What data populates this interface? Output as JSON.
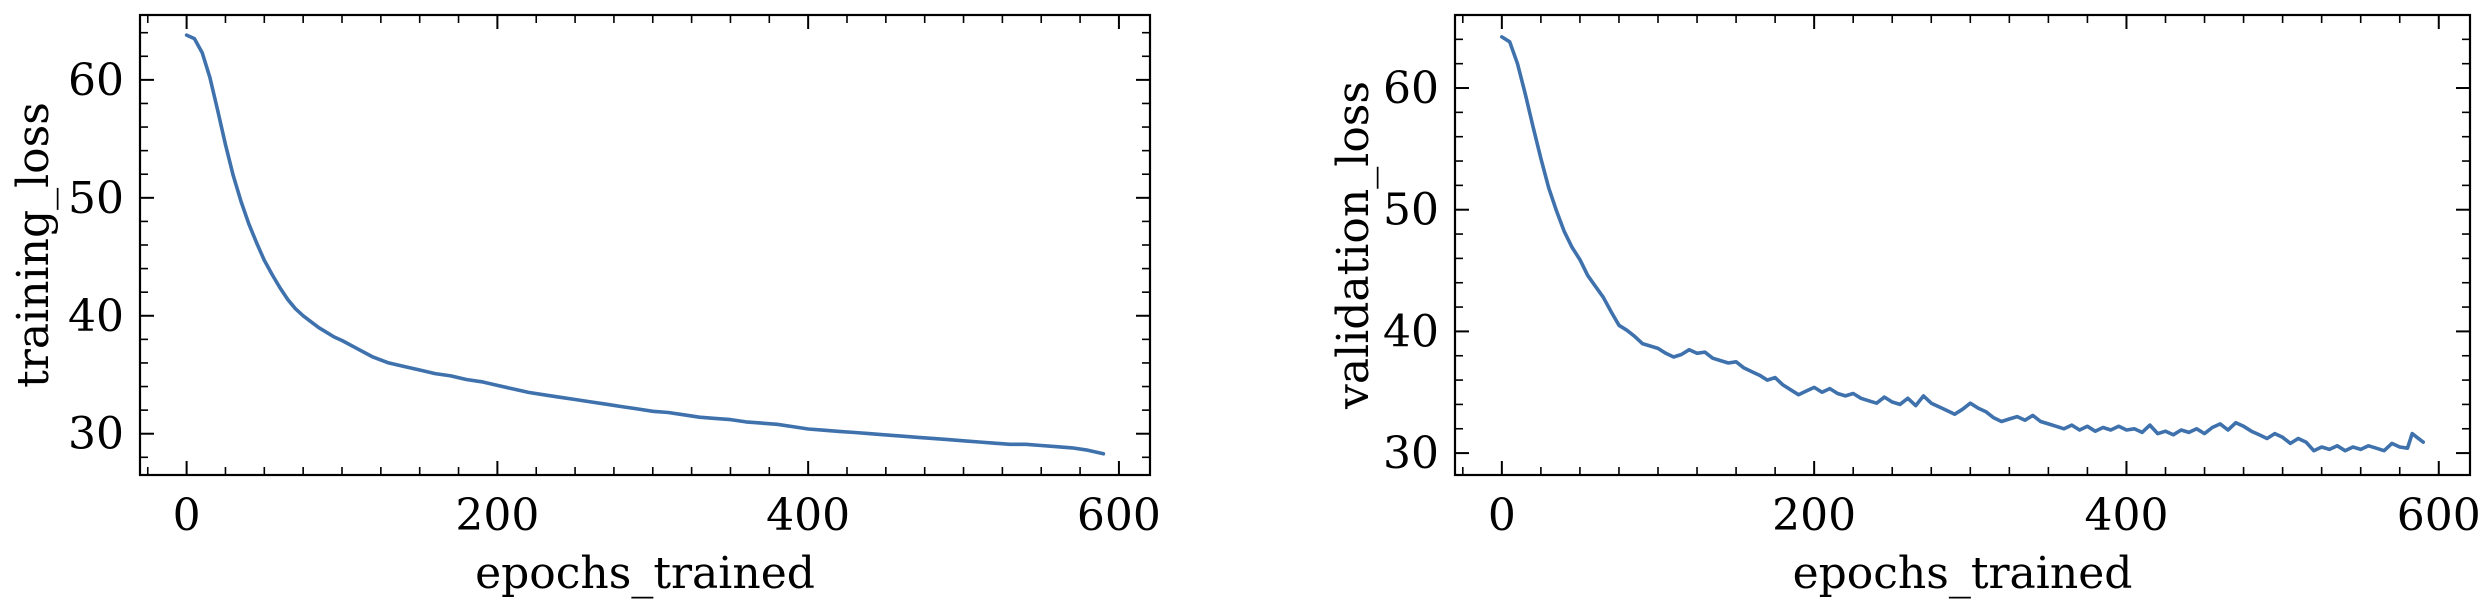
{
  "chart_data": [
    {
      "type": "line",
      "title": "",
      "xlabel": "epochs_trained",
      "ylabel": "training_loss",
      "xlim": [
        -30,
        620
      ],
      "ylim": [
        26.5,
        65.5
      ],
      "xticks": [
        0,
        200,
        400,
        600
      ],
      "yticks": [
        30,
        40,
        50,
        60
      ],
      "grid": false,
      "series": [
        {
          "color": "#3f72ad",
          "x": [
            0,
            5,
            10,
            15,
            20,
            25,
            30,
            35,
            40,
            45,
            50,
            55,
            60,
            65,
            70,
            75,
            80,
            85,
            90,
            95,
            100,
            110,
            120,
            130,
            140,
            150,
            160,
            170,
            180,
            190,
            200,
            210,
            220,
            230,
            240,
            250,
            260,
            270,
            280,
            290,
            300,
            310,
            320,
            330,
            340,
            350,
            360,
            370,
            380,
            390,
            400,
            410,
            420,
            430,
            440,
            450,
            460,
            470,
            480,
            490,
            500,
            510,
            520,
            530,
            540,
            550,
            560,
            570,
            580,
            590
          ],
          "y": [
            63.8,
            63.5,
            62.3,
            60.2,
            57.4,
            54.5,
            51.9,
            49.7,
            47.8,
            46.2,
            44.7,
            43.5,
            42.4,
            41.4,
            40.6,
            40.0,
            39.5,
            39.0,
            38.6,
            38.2,
            37.9,
            37.2,
            36.5,
            36.0,
            35.7,
            35.4,
            35.1,
            34.9,
            34.6,
            34.4,
            34.1,
            33.8,
            33.5,
            33.3,
            33.1,
            32.9,
            32.7,
            32.5,
            32.3,
            32.1,
            31.9,
            31.8,
            31.6,
            31.4,
            31.3,
            31.2,
            31.0,
            30.9,
            30.8,
            30.6,
            30.4,
            30.3,
            30.2,
            30.1,
            30.0,
            29.9,
            29.8,
            29.7,
            29.6,
            29.5,
            29.4,
            29.3,
            29.2,
            29.1,
            29.1,
            29.0,
            28.9,
            28.8,
            28.6,
            28.3
          ]
        }
      ]
    },
    {
      "type": "line",
      "title": "",
      "xlabel": "epochs_trained",
      "ylabel": "validation_loss",
      "xlim": [
        -30,
        620
      ],
      "ylim": [
        28.2,
        66
      ],
      "xticks": [
        0,
        200,
        400,
        600
      ],
      "yticks": [
        30,
        40,
        50,
        60
      ],
      "grid": false,
      "series": [
        {
          "color": "#3f72ad",
          "x": [
            0,
            5,
            10,
            15,
            20,
            25,
            30,
            35,
            40,
            45,
            50,
            55,
            60,
            65,
            70,
            75,
            80,
            85,
            90,
            95,
            100,
            105,
            110,
            115,
            120,
            125,
            130,
            135,
            140,
            145,
            150,
            155,
            160,
            165,
            170,
            175,
            180,
            185,
            190,
            195,
            200,
            205,
            210,
            215,
            220,
            225,
            230,
            235,
            240,
            245,
            250,
            255,
            260,
            265,
            270,
            275,
            280,
            285,
            290,
            295,
            300,
            305,
            310,
            315,
            320,
            325,
            330,
            335,
            340,
            345,
            350,
            355,
            360,
            365,
            370,
            375,
            380,
            385,
            390,
            395,
            400,
            405,
            410,
            415,
            420,
            425,
            430,
            435,
            440,
            445,
            450,
            455,
            460,
            465,
            470,
            475,
            480,
            485,
            490,
            495,
            500,
            505,
            510,
            515,
            520,
            525,
            530,
            535,
            540,
            545,
            550,
            555,
            560,
            565,
            570,
            575,
            580,
            583,
            586,
            590
          ],
          "y": [
            64.2,
            63.8,
            62.0,
            59.5,
            56.8,
            54.2,
            51.8,
            49.9,
            48.2,
            46.9,
            45.9,
            44.6,
            43.7,
            42.8,
            41.6,
            40.5,
            40.1,
            39.6,
            39.0,
            38.8,
            38.6,
            38.2,
            37.9,
            38.1,
            38.5,
            38.2,
            38.3,
            37.8,
            37.6,
            37.4,
            37.5,
            37.0,
            36.7,
            36.4,
            36.0,
            36.2,
            35.6,
            35.2,
            34.8,
            35.1,
            35.4,
            35.0,
            35.3,
            34.9,
            34.7,
            34.9,
            34.5,
            34.3,
            34.1,
            34.6,
            34.2,
            34.0,
            34.5,
            33.9,
            34.7,
            34.1,
            33.8,
            33.5,
            33.2,
            33.6,
            34.1,
            33.7,
            33.4,
            32.9,
            32.6,
            32.8,
            33.0,
            32.7,
            33.1,
            32.6,
            32.4,
            32.2,
            32.0,
            32.3,
            31.9,
            32.2,
            31.8,
            32.1,
            31.9,
            32.2,
            31.9,
            32.0,
            31.7,
            32.3,
            31.6,
            31.8,
            31.5,
            31.9,
            31.7,
            32.0,
            31.6,
            32.1,
            32.4,
            31.9,
            32.5,
            32.2,
            31.8,
            31.5,
            31.2,
            31.6,
            31.3,
            30.8,
            31.2,
            30.9,
            30.2,
            30.5,
            30.3,
            30.6,
            30.2,
            30.5,
            30.3,
            30.6,
            30.4,
            30.2,
            30.8,
            30.5,
            30.4,
            31.6,
            31.3,
            30.9
          ]
        }
      ]
    }
  ]
}
